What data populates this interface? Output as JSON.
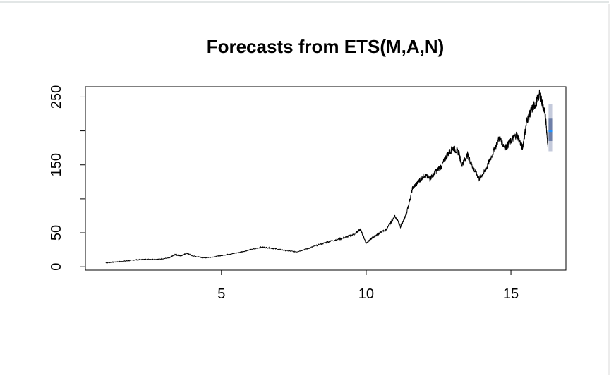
{
  "chart_data": {
    "type": "line",
    "title": "Forecasts from ETS(M,A,N)",
    "xlabel": "",
    "ylabel": "",
    "xlim": [
      0.3,
      16.9
    ],
    "ylim": [
      -5,
      265
    ],
    "x_ticks": [
      5,
      10,
      15
    ],
    "x_tick_labels": [
      "5",
      "10",
      "15"
    ],
    "y_ticks": [
      0,
      50,
      150,
      250
    ],
    "y_tick_labels": [
      "0",
      "50",
      "150",
      "250"
    ],
    "y_minor_ticks": [
      100,
      200
    ],
    "grid": false,
    "legend": "none",
    "series": [
      {
        "color": "#000000",
        "points": [
          [
            1.0,
            6
          ],
          [
            1.3,
            7
          ],
          [
            1.6,
            8
          ],
          [
            2.0,
            10
          ],
          [
            2.4,
            11
          ],
          [
            2.8,
            11
          ],
          [
            3.2,
            13
          ],
          [
            3.4,
            18
          ],
          [
            3.6,
            16
          ],
          [
            3.8,
            20
          ],
          [
            4.0,
            16
          ],
          [
            4.4,
            13
          ],
          [
            4.8,
            15
          ],
          [
            5.2,
            18
          ],
          [
            5.6,
            21
          ],
          [
            6.0,
            25
          ],
          [
            6.4,
            29
          ],
          [
            6.8,
            27
          ],
          [
            7.2,
            24
          ],
          [
            7.6,
            22
          ],
          [
            8.0,
            27
          ],
          [
            8.4,
            33
          ],
          [
            8.8,
            38
          ],
          [
            9.2,
            42
          ],
          [
            9.6,
            48
          ],
          [
            9.8,
            55
          ],
          [
            10.0,
            35
          ],
          [
            10.2,
            42
          ],
          [
            10.4,
            48
          ],
          [
            10.7,
            55
          ],
          [
            11.0,
            75
          ],
          [
            11.2,
            58
          ],
          [
            11.4,
            80
          ],
          [
            11.6,
            115
          ],
          [
            11.8,
            125
          ],
          [
            12.0,
            135
          ],
          [
            12.2,
            130
          ],
          [
            12.4,
            140
          ],
          [
            12.6,
            148
          ],
          [
            12.8,
            165
          ],
          [
            13.0,
            175
          ],
          [
            13.2,
            168
          ],
          [
            13.3,
            150
          ],
          [
            13.5,
            165
          ],
          [
            13.7,
            145
          ],
          [
            13.9,
            130
          ],
          [
            14.1,
            140
          ],
          [
            14.3,
            160
          ],
          [
            14.6,
            190
          ],
          [
            14.8,
            175
          ],
          [
            15.0,
            185
          ],
          [
            15.2,
            195
          ],
          [
            15.4,
            175
          ],
          [
            15.55,
            215
          ],
          [
            15.7,
            230
          ],
          [
            15.85,
            240
          ],
          [
            16.0,
            255
          ],
          [
            16.1,
            238
          ],
          [
            16.2,
            220
          ],
          [
            16.28,
            175
          ]
        ]
      },
      {
        "type": "forecast",
        "color": "#1E90FF",
        "mean": [
          [
            16.3,
            200
          ],
          [
            16.45,
            200
          ]
        ],
        "interval_80": [
          [
            16.3,
            185
          ],
          [
            16.45,
            218
          ]
        ],
        "interval_95": [
          [
            16.3,
            170
          ],
          [
            16.45,
            240
          ]
        ],
        "interval_80_color": "#6E7FA8",
        "interval_95_color": "#C4CADB"
      }
    ]
  }
}
